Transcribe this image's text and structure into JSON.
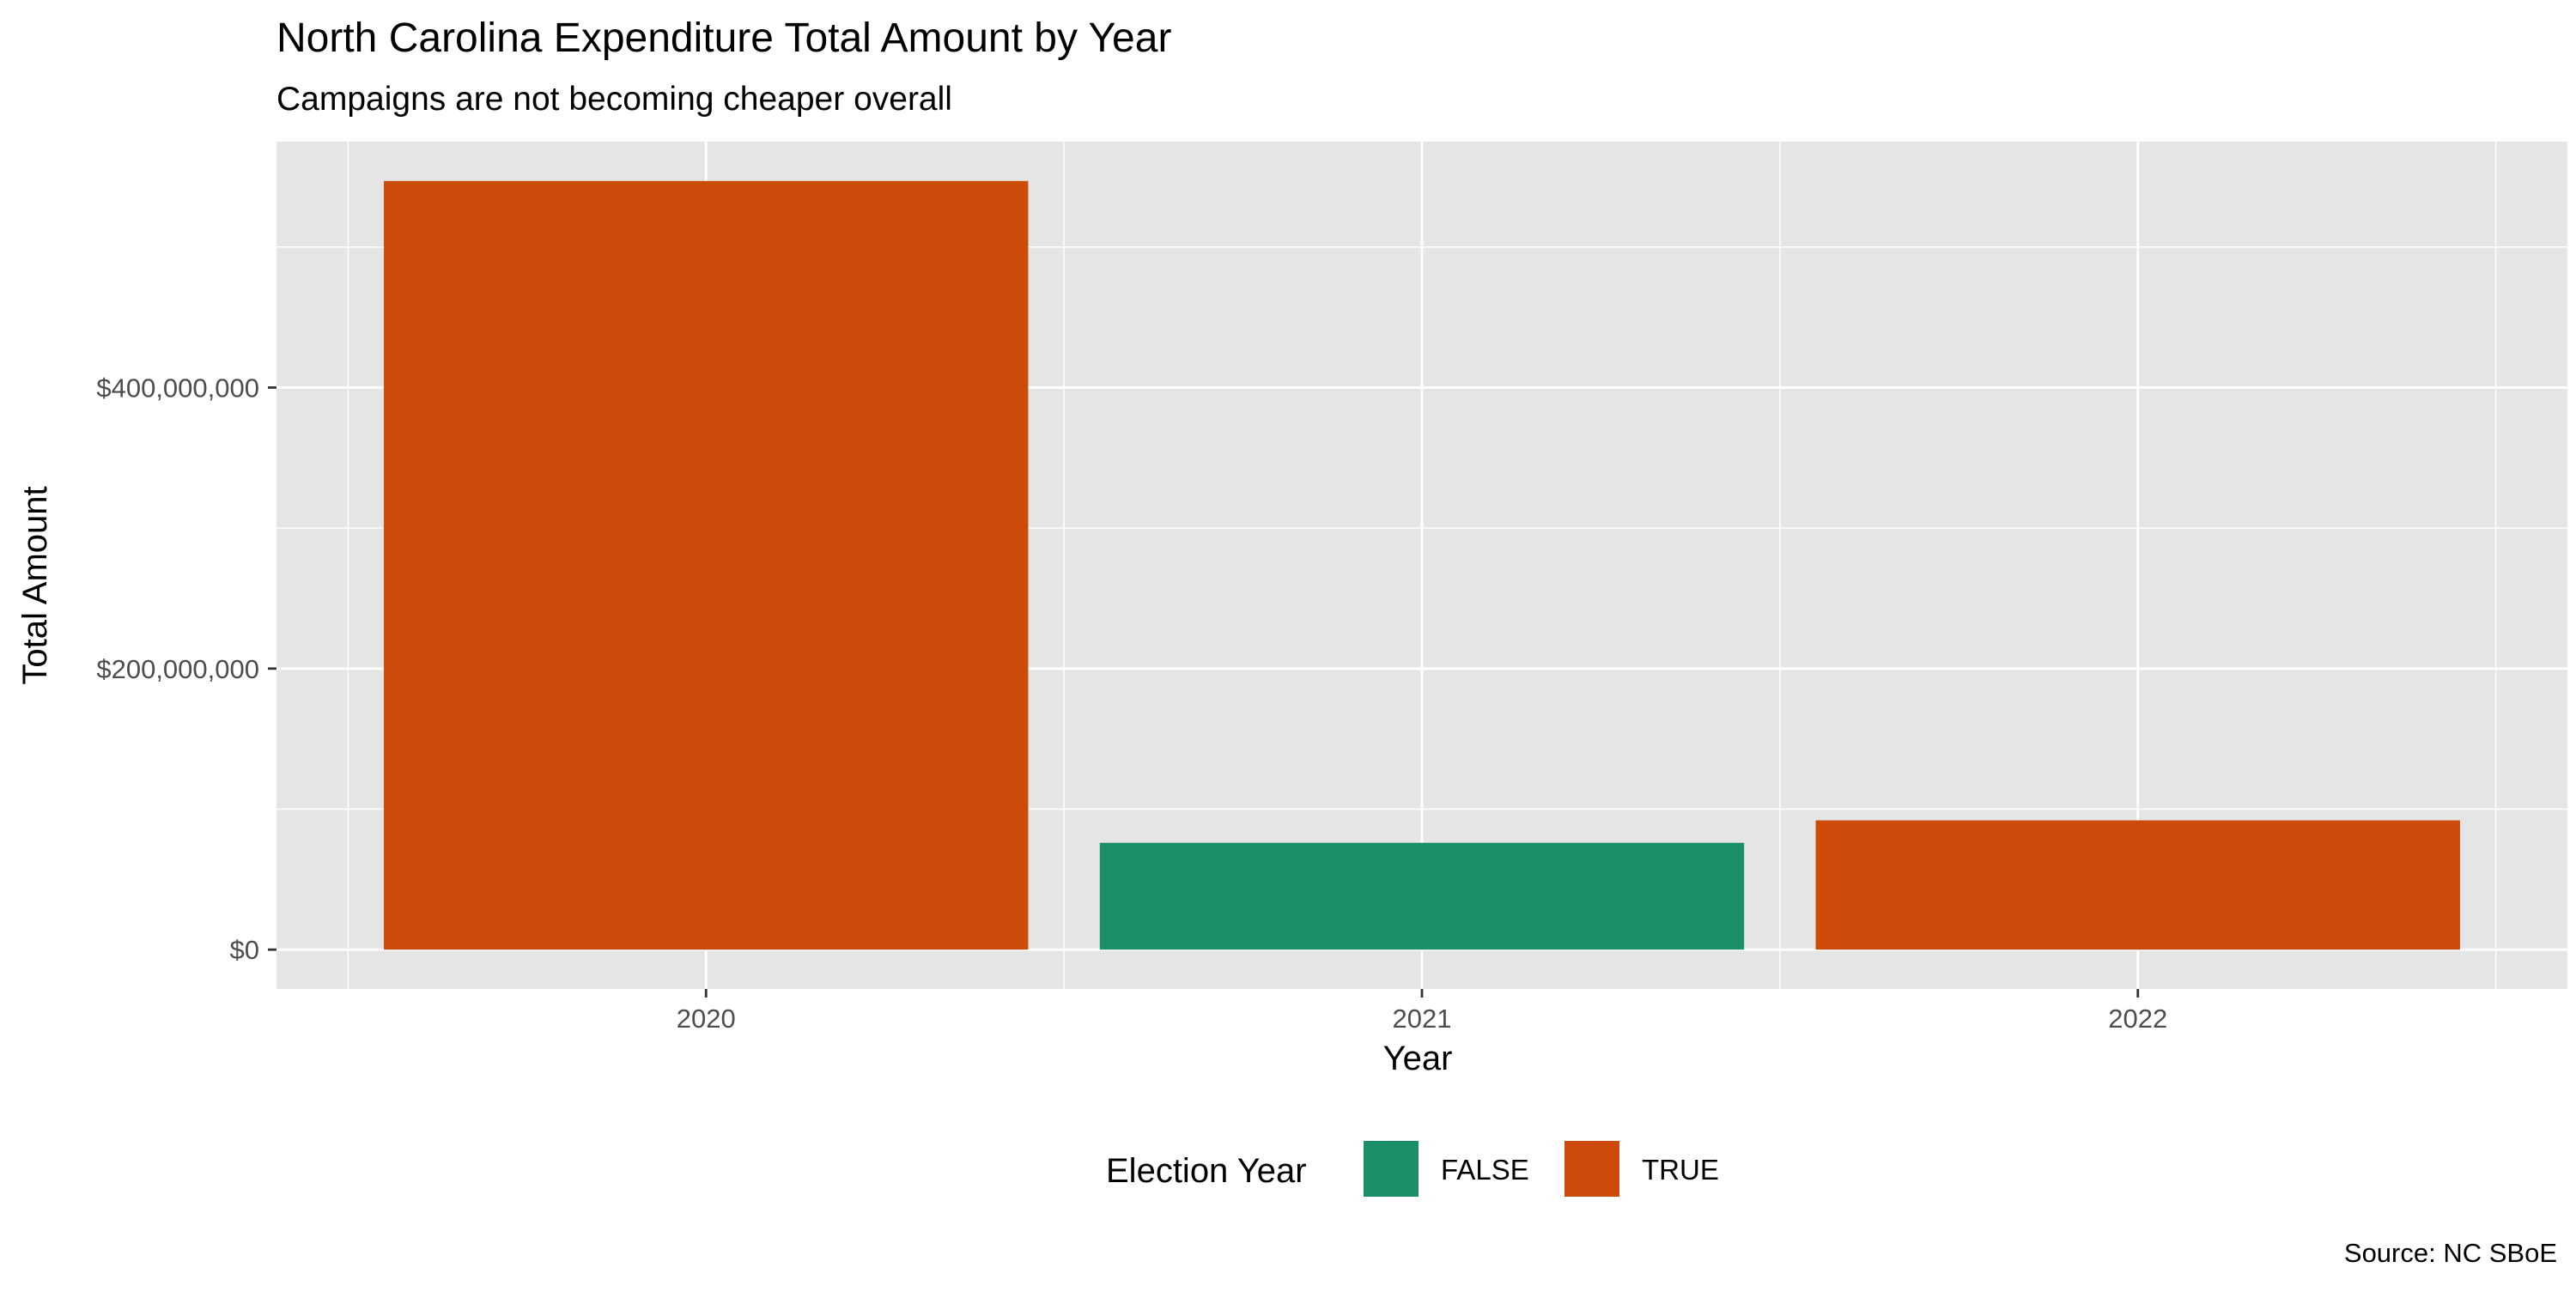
{
  "chart_data": {
    "type": "bar",
    "title": "North Carolina Expenditure Total Amount by Year",
    "subtitle": "Campaigns are not becoming cheaper overall",
    "xlabel": "Year",
    "ylabel": "Total Amount",
    "caption": "Source: NC SBoE",
    "categories": [
      "2020",
      "2021",
      "2022"
    ],
    "values": [
      547000000,
      76000000,
      92000000
    ],
    "fill_group": [
      "TRUE",
      "FALSE",
      "TRUE"
    ],
    "ylim": [
      -28000000,
      575000000
    ],
    "y_ticks": [
      0,
      200000000,
      400000000
    ],
    "y_tick_labels": [
      "$0",
      "$200,000,000",
      "$400,000,000"
    ],
    "grid": true,
    "legend": {
      "title": "Election Year",
      "position": "bottom",
      "entries": [
        {
          "label": "FALSE",
          "color": "#1b9068"
        },
        {
          "label": "TRUE",
          "color": "#cc4a0a"
        }
      ]
    },
    "colors": {
      "FALSE": "#1b9068",
      "TRUE": "#cc4a0a",
      "panel": "#e5e5e5",
      "grid": "#ffffff"
    }
  }
}
